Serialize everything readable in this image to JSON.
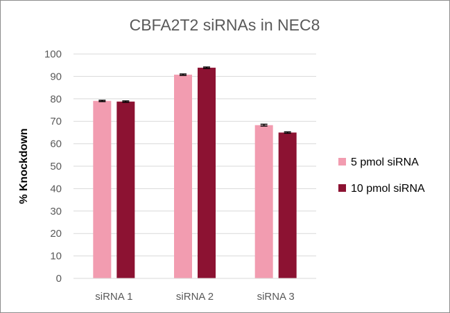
{
  "chart_data": {
    "type": "bar",
    "title": "CBFA2T2 siRNAs in NEC8",
    "xlabel": "",
    "ylabel": "% Knockdown",
    "categories": [
      "siRNA 1",
      "siRNA 2",
      "siRNA 3"
    ],
    "series": [
      {
        "name": "5 pmol siRNA",
        "values": [
          79.1,
          90.8,
          68.3
        ],
        "errors": [
          0.3,
          0.3,
          0.4
        ],
        "color": "#f29cb0"
      },
      {
        "name": "10 pmol siRNA",
        "values": [
          78.8,
          93.9,
          65.0
        ],
        "errors": [
          0.3,
          0.3,
          0.3
        ],
        "color": "#8c1232"
      }
    ],
    "ylim": [
      0,
      100
    ],
    "yticks": [
      0,
      10,
      20,
      30,
      40,
      50,
      60,
      70,
      80,
      90,
      100
    ],
    "grid": true,
    "legend_position": "right"
  }
}
